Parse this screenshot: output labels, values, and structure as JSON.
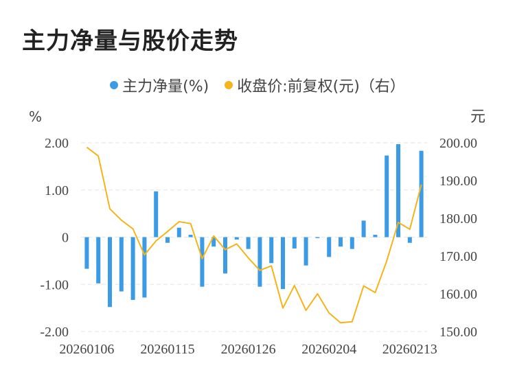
{
  "title": "主力净量与股价走势",
  "legend": {
    "series1": "主力净量(%)",
    "series2": "收盘价:前复权(元)（右）"
  },
  "colors": {
    "bar": "#3b9be6",
    "line": "#f4b41a",
    "grid": "#e6e6e6"
  },
  "axes": {
    "left_unit": "%",
    "right_unit": "元",
    "left_ticks": [
      "2.00",
      "1.00",
      "0",
      "-1.00",
      "-2.00"
    ],
    "right_ticks": [
      "200.00",
      "190.00",
      "180.00",
      "170.00",
      "160.00",
      "150.00"
    ],
    "x_ticks": [
      "20260106",
      "20260115",
      "20260126",
      "20260204",
      "20260213"
    ]
  },
  "chart_data": {
    "type": "bar+line",
    "left_ylim": [
      -2,
      2
    ],
    "right_ylim": [
      150,
      200
    ],
    "x_tick_indices": [
      0,
      7,
      14,
      21,
      28
    ],
    "series": [
      {
        "name": "主力净量(%)",
        "type": "bar",
        "axis": "left",
        "values": [
          -0.67,
          -0.98,
          -1.48,
          -1.15,
          -1.33,
          -1.28,
          0.97,
          -0.12,
          0.2,
          0.05,
          -1.05,
          -0.2,
          -0.77,
          -0.05,
          -0.25,
          -1.05,
          -0.55,
          -1.1,
          -0.24,
          -0.6,
          -0.02,
          -0.42,
          -0.2,
          -0.25,
          0.35,
          0.05,
          1.73,
          1.97,
          -0.12,
          1.83
        ]
      },
      {
        "name": "收盘价:前复权(元)（右）",
        "type": "line",
        "axis": "right",
        "values": [
          198.8,
          196.5,
          182.5,
          179.5,
          177.2,
          170.3,
          174.0,
          176.5,
          179.1,
          178.6,
          169.3,
          175.3,
          171.7,
          173.2,
          169.5,
          166.2,
          167.4,
          156.2,
          162.2,
          155.6,
          160.0,
          154.9,
          152.3,
          152.6,
          162.1,
          160.3,
          168.7,
          178.9,
          177.1,
          188.9
        ]
      }
    ]
  }
}
